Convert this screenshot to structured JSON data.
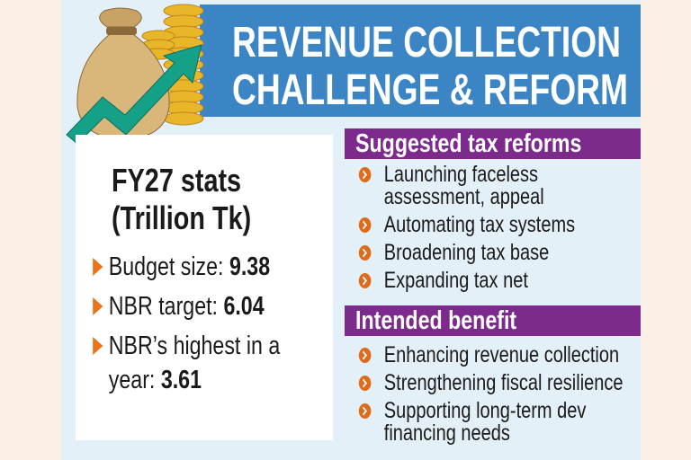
{
  "header": {
    "title_lines": [
      "REVENUE COLLECTION",
      "CHALLENGE & REFORM"
    ]
  },
  "stats": {
    "heading_lines": [
      "FY27 stats",
      "(Trillion Tk)"
    ],
    "items": [
      {
        "label": "Budget size:",
        "value": 9.38
      },
      {
        "label": "NBR target:",
        "value": 6.04
      },
      {
        "label": "NBR’s highest in a year:",
        "value": 3.61
      }
    ]
  },
  "reforms": {
    "heading": "Suggested tax reforms",
    "items": [
      "Launching faceless assessment, appeal",
      "Automating tax systems",
      "Broadening tax base",
      "Expanding tax net"
    ]
  },
  "benefits": {
    "heading": "Intended benefit",
    "items": [
      "Enhancing revenue collection",
      "Strengthening fiscal resilience",
      "Supporting long-term dev financing needs"
    ]
  }
}
